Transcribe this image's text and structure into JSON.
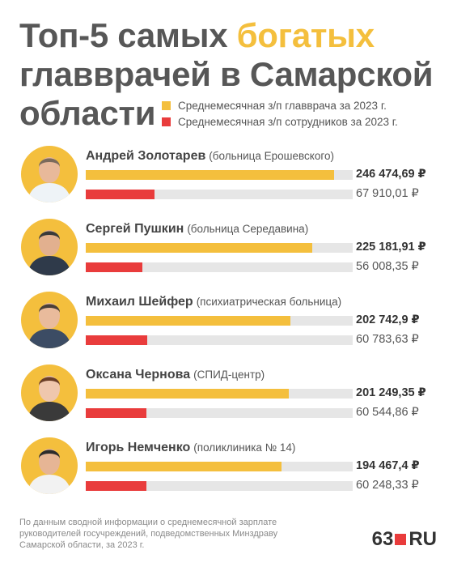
{
  "title": {
    "line1_pre": "Топ-5 самых ",
    "line1_accent": "богатых",
    "line2": "главврачей в Самарской",
    "line3": "области"
  },
  "legend": [
    {
      "label": "Среднемесячная з/п главврача за 2023 г.",
      "color": "#f4bf3d"
    },
    {
      "label": "Среднемесячная з/п сотрудников за 2023 г.",
      "color": "#e93c3c"
    }
  ],
  "colors": {
    "accent_yellow": "#f4bf3d",
    "accent_red": "#e93c3c",
    "track": "#e6e6e6"
  },
  "chart_data": {
    "type": "bar",
    "orientation": "horizontal",
    "unit": "₽",
    "categories": [
      "Андрей Золотарев",
      "Сергей Пушкин",
      "Михаил Шейфер",
      "Оксана Чернова",
      "Игорь Немченко"
    ],
    "xlim": [
      0,
      265000
    ],
    "grid": false,
    "legend_position": "top-right",
    "series": [
      {
        "name": "Среднемесячная з/п главврача за 2023 г.",
        "color": "#f4bf3d",
        "values": [
          246474.69,
          225181.91,
          202742.9,
          201249.35,
          194467.4
        ],
        "labels": [
          "246 474,69 ₽",
          "225 181,91 ₽",
          "202 742,9 ₽",
          "201 249,35 ₽",
          "194 467,4 ₽"
        ]
      },
      {
        "name": "Среднемесячная з/п сотрудников за 2023 г.",
        "color": "#e93c3c",
        "values": [
          67910.01,
          56008.35,
          60783.63,
          60544.86,
          60248.33
        ],
        "labels": [
          "67 910,01 ₽",
          "56 008,35 ₽",
          "60 783,63 ₽",
          "60 544,86 ₽",
          "60 248,33 ₽"
        ]
      }
    ]
  },
  "rows": [
    {
      "name": "Андрей Золотарев",
      "org": "(больница Ерошевского)",
      "avatar_icon": "person-avatar-icon"
    },
    {
      "name": "Сергей Пушкин",
      "org": "(больница Середавина)",
      "avatar_icon": "person-avatar-icon"
    },
    {
      "name": "Михаил Шейфер",
      "org": "(психиатрическая больница)",
      "avatar_icon": "person-avatar-icon"
    },
    {
      "name": "Оксана Чернова",
      "org": "(СПИД-центр)",
      "avatar_icon": "person-avatar-icon"
    },
    {
      "name": "Игорь Немченко",
      "org": "(поликлиника № 14)",
      "avatar_icon": "person-avatar-icon"
    }
  ],
  "footnote": "По данным сводной информации о среднемесячной зарплате руководителей госучреждений, подведомственных  Минздраву Самарской области, за 2023 г.",
  "logo": {
    "left": "63",
    "right": "RU"
  }
}
